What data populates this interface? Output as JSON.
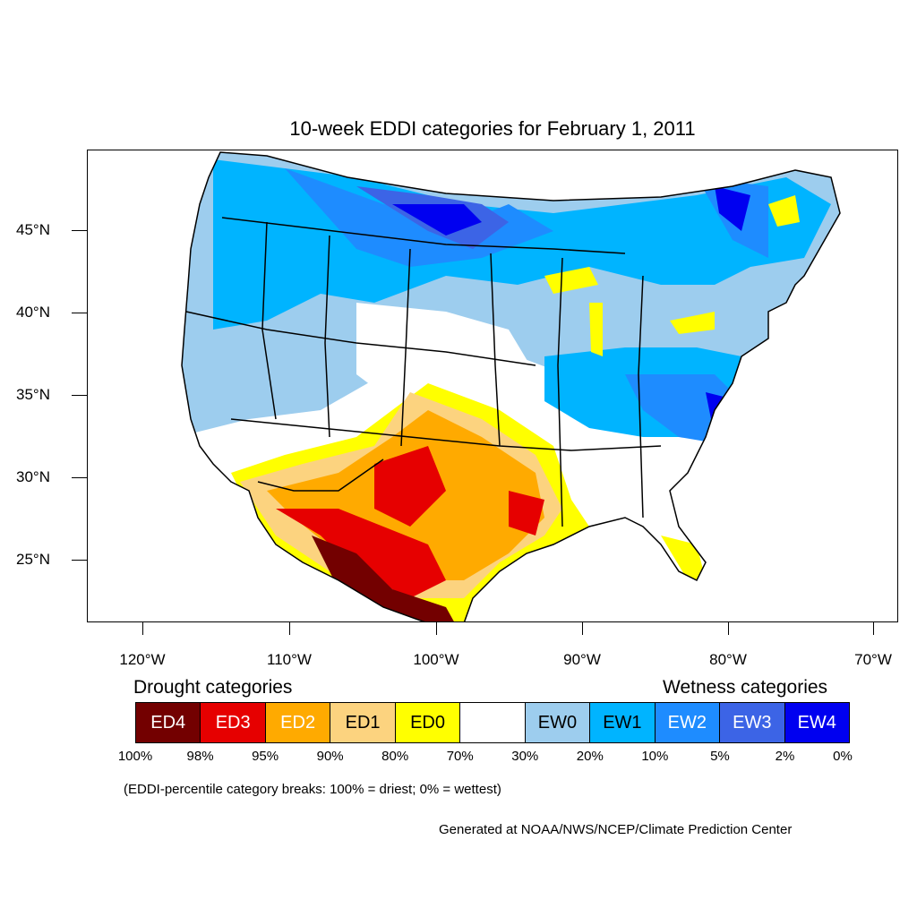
{
  "title": "10-week EDDI categories for February 1, 2011",
  "lat_labels": [
    "45°N",
    "40°N",
    "35°N",
    "30°N",
    "25°N"
  ],
  "lon_labels": [
    "120°W",
    "110°W",
    "100°W",
    "90°W",
    "80°W",
    "70°W"
  ],
  "legend": {
    "drought_heading": "Drought categories",
    "wetness_heading": "Wetness categories",
    "categories": [
      {
        "label": "ED4",
        "color": "#730000",
        "text_color": "#ffffff"
      },
      {
        "label": "ED3",
        "color": "#e60000",
        "text_color": "#ffffff"
      },
      {
        "label": "ED2",
        "color": "#ffaa00",
        "text_color": "#ffffff"
      },
      {
        "label": "ED1",
        "color": "#fcd37f",
        "text_color": "#000000"
      },
      {
        "label": "ED0",
        "color": "#ffff00",
        "text_color": "#000000"
      },
      {
        "label": "",
        "color": "#ffffff",
        "text_color": "#000000"
      },
      {
        "label": "EW0",
        "color": "#9dcdee",
        "text_color": "#000000"
      },
      {
        "label": "EW1",
        "color": "#00b4ff",
        "text_color": "#000000"
      },
      {
        "label": "EW2",
        "color": "#1e8cff",
        "text_color": "#ffffff"
      },
      {
        "label": "EW3",
        "color": "#3c64e6",
        "text_color": "#ffffff"
      },
      {
        "label": "EW4",
        "color": "#0000f0",
        "text_color": "#ffffff"
      }
    ],
    "percentiles": [
      "100%",
      "98%",
      "95%",
      "90%",
      "80%",
      "70%",
      "30%",
      "20%",
      "10%",
      "5%",
      "2%",
      "0%"
    ]
  },
  "note": "(EDDI-percentile category breaks: 100% = driest; 0% = wettest)",
  "credit": "Generated at NOAA/NWS/NCEP/Climate Prediction Center"
}
